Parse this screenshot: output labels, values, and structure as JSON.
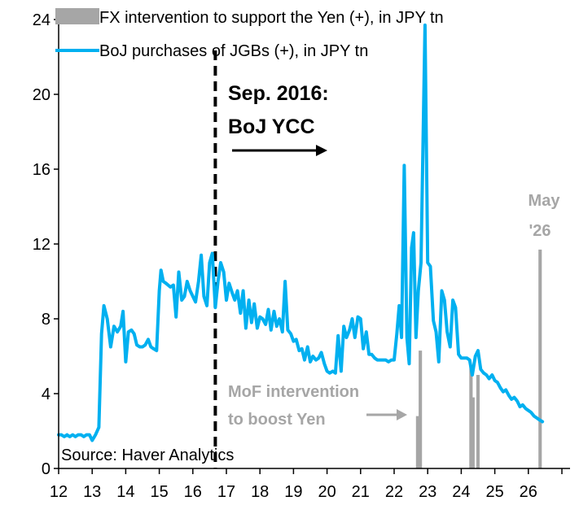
{
  "chart_data": {
    "type": "line",
    "x_unit": "year (2-digit, 20xx)",
    "xlim": [
      12,
      27
    ],
    "ylim": [
      0,
      24
    ],
    "x_ticks": [
      "12",
      "13",
      "14",
      "15",
      "16",
      "17",
      "18",
      "19",
      "20",
      "21",
      "22",
      "23",
      "24",
      "25",
      "26"
    ],
    "y_ticks": [
      "0",
      "4",
      "8",
      "12",
      "16",
      "20",
      "24"
    ],
    "series": [
      {
        "name": "BoJ purchases of JGBs (+), in JPY tn",
        "kind": "line",
        "color": "#00b0f0",
        "points": [
          [
            12.0,
            1.8
          ],
          [
            12.08,
            1.8
          ],
          [
            12.17,
            1.7
          ],
          [
            12.25,
            1.8
          ],
          [
            12.33,
            1.7
          ],
          [
            12.42,
            1.8
          ],
          [
            12.5,
            1.7
          ],
          [
            12.58,
            1.8
          ],
          [
            12.67,
            1.8
          ],
          [
            12.75,
            1.7
          ],
          [
            12.83,
            1.8
          ],
          [
            12.92,
            1.8
          ],
          [
            13.0,
            1.5
          ],
          [
            13.1,
            1.8
          ],
          [
            13.2,
            2.2
          ],
          [
            13.28,
            7.2
          ],
          [
            13.35,
            8.7
          ],
          [
            13.45,
            8.0
          ],
          [
            13.55,
            6.5
          ],
          [
            13.65,
            7.6
          ],
          [
            13.75,
            7.3
          ],
          [
            13.85,
            7.6
          ],
          [
            13.92,
            8.4
          ],
          [
            14.0,
            5.7
          ],
          [
            14.08,
            7.3
          ],
          [
            14.17,
            7.4
          ],
          [
            14.25,
            7.2
          ],
          [
            14.33,
            6.6
          ],
          [
            14.42,
            6.5
          ],
          [
            14.5,
            6.5
          ],
          [
            14.58,
            6.6
          ],
          [
            14.67,
            6.9
          ],
          [
            14.75,
            6.5
          ],
          [
            14.83,
            6.4
          ],
          [
            14.92,
            6.3
          ],
          [
            15.0,
            9.5
          ],
          [
            15.05,
            10.6
          ],
          [
            15.12,
            10.0
          ],
          [
            15.2,
            9.9
          ],
          [
            15.33,
            9.7
          ],
          [
            15.42,
            9.8
          ],
          [
            15.5,
            8.1
          ],
          [
            15.58,
            10.5
          ],
          [
            15.67,
            9.0
          ],
          [
            15.75,
            9.2
          ],
          [
            15.83,
            10.0
          ],
          [
            15.92,
            9.5
          ],
          [
            16.0,
            9.2
          ],
          [
            16.08,
            8.9
          ],
          [
            16.17,
            10.0
          ],
          [
            16.25,
            11.4
          ],
          [
            16.33,
            9.2
          ],
          [
            16.42,
            8.7
          ],
          [
            16.5,
            11.0
          ],
          [
            16.58,
            11.5
          ],
          [
            16.67,
            8.6
          ],
          [
            16.75,
            10.0
          ],
          [
            16.83,
            11.0
          ],
          [
            16.92,
            10.5
          ],
          [
            17.0,
            9.0
          ],
          [
            17.08,
            9.9
          ],
          [
            17.17,
            9.4
          ],
          [
            17.25,
            9.0
          ],
          [
            17.33,
            9.5
          ],
          [
            17.42,
            8.3
          ],
          [
            17.5,
            9.5
          ],
          [
            17.58,
            7.5
          ],
          [
            17.67,
            9.0
          ],
          [
            17.75,
            7.8
          ],
          [
            17.83,
            8.8
          ],
          [
            17.92,
            7.5
          ],
          [
            18.0,
            8.1
          ],
          [
            18.08,
            8.0
          ],
          [
            18.17,
            7.7
          ],
          [
            18.25,
            8.5
          ],
          [
            18.33,
            7.4
          ],
          [
            18.42,
            8.4
          ],
          [
            18.5,
            7.6
          ],
          [
            18.58,
            8.0
          ],
          [
            18.67,
            7.3
          ],
          [
            18.75,
            10.0
          ],
          [
            18.83,
            7.4
          ],
          [
            18.92,
            7.2
          ],
          [
            19.0,
            6.8
          ],
          [
            19.08,
            6.9
          ],
          [
            19.17,
            6.3
          ],
          [
            19.25,
            6.4
          ],
          [
            19.33,
            5.8
          ],
          [
            19.42,
            6.5
          ],
          [
            19.5,
            5.7
          ],
          [
            19.58,
            6.0
          ],
          [
            19.67,
            5.8
          ],
          [
            19.75,
            5.9
          ],
          [
            19.83,
            6.2
          ],
          [
            19.92,
            5.6
          ],
          [
            20.0,
            5.2
          ],
          [
            20.08,
            5.1
          ],
          [
            20.17,
            5.2
          ],
          [
            20.25,
            5.1
          ],
          [
            20.33,
            7.1
          ],
          [
            20.42,
            5.2
          ],
          [
            20.5,
            7.6
          ],
          [
            20.58,
            7.0
          ],
          [
            20.67,
            7.4
          ],
          [
            20.75,
            8.0
          ],
          [
            20.83,
            7.0
          ],
          [
            20.92,
            8.1
          ],
          [
            21.0,
            8.0
          ],
          [
            21.08,
            6.4
          ],
          [
            21.17,
            7.3
          ],
          [
            21.25,
            6.1
          ],
          [
            21.33,
            6.1
          ],
          [
            21.42,
            5.9
          ],
          [
            21.5,
            5.8
          ],
          [
            21.58,
            5.8
          ],
          [
            21.67,
            5.8
          ],
          [
            21.75,
            5.8
          ],
          [
            21.83,
            5.7
          ],
          [
            21.92,
            5.8
          ],
          [
            22.0,
            5.8
          ],
          [
            22.08,
            7.2
          ],
          [
            22.15,
            8.7
          ],
          [
            22.22,
            7.0
          ],
          [
            22.3,
            16.2
          ],
          [
            22.38,
            7.0
          ],
          [
            22.45,
            5.6
          ],
          [
            22.52,
            11.8
          ],
          [
            22.58,
            12.6
          ],
          [
            22.65,
            7.0
          ],
          [
            22.72,
            9.5
          ],
          [
            22.8,
            11.0
          ],
          [
            22.92,
            23.7
          ],
          [
            23.0,
            11.0
          ],
          [
            23.08,
            10.8
          ],
          [
            23.17,
            7.9
          ],
          [
            23.25,
            7.3
          ],
          [
            23.33,
            5.7
          ],
          [
            23.42,
            9.5
          ],
          [
            23.5,
            9.0
          ],
          [
            23.58,
            7.3
          ],
          [
            23.67,
            6.5
          ],
          [
            23.75,
            9.0
          ],
          [
            23.83,
            8.6
          ],
          [
            23.92,
            6.1
          ],
          [
            24.0,
            5.9
          ],
          [
            24.08,
            5.9
          ],
          [
            24.17,
            5.9
          ],
          [
            24.25,
            5.8
          ],
          [
            24.33,
            5.0
          ],
          [
            24.42,
            6.0
          ],
          [
            24.5,
            6.3
          ],
          [
            24.58,
            5.3
          ],
          [
            24.67,
            5.1
          ],
          [
            24.75,
            5.0
          ],
          [
            24.83,
            4.8
          ],
          [
            24.92,
            5.0
          ],
          [
            25.0,
            4.7
          ],
          [
            25.08,
            4.6
          ],
          [
            25.17,
            4.3
          ],
          [
            25.25,
            4.1
          ],
          [
            25.33,
            4.2
          ],
          [
            25.42,
            3.9
          ],
          [
            25.5,
            3.7
          ],
          [
            25.58,
            3.8
          ],
          [
            25.67,
            3.6
          ],
          [
            25.75,
            3.3
          ],
          [
            25.83,
            3.4
          ],
          [
            25.92,
            3.2
          ],
          [
            26.0,
            3.1
          ],
          [
            26.08,
            3.0
          ],
          [
            26.17,
            2.8
          ],
          [
            26.25,
            2.7
          ],
          [
            26.33,
            2.6
          ],
          [
            26.42,
            2.5
          ]
        ]
      },
      {
        "name": "FX intervention to support the Yen (+), in JPY tn",
        "kind": "bar",
        "color": "#a6a6a6",
        "bar_width_years": 0.1,
        "points": [
          [
            22.7,
            2.8
          ],
          [
            22.78,
            6.3
          ],
          [
            24.29,
            5.5
          ],
          [
            24.35,
            3.8
          ],
          [
            24.5,
            5.0
          ],
          [
            26.35,
            11.7
          ]
        ]
      }
    ],
    "vline": {
      "x": 16.67,
      "style": "dashed",
      "color": "#000000"
    },
    "legend_position": "top-left",
    "annotations": {
      "event_line1": "Sep. 2016:",
      "event_line2": "BoJ YCC",
      "mof_line1": "MoF intervention",
      "mof_line2": "to boost Yen",
      "may_line1": "May",
      "may_line2": "'26",
      "source": "Source: Haver Analytics"
    }
  },
  "colors": {
    "line": "#00b0f0",
    "bar": "#a6a6a6",
    "note_grey": "#a6a6a6",
    "axis": "#000000"
  }
}
